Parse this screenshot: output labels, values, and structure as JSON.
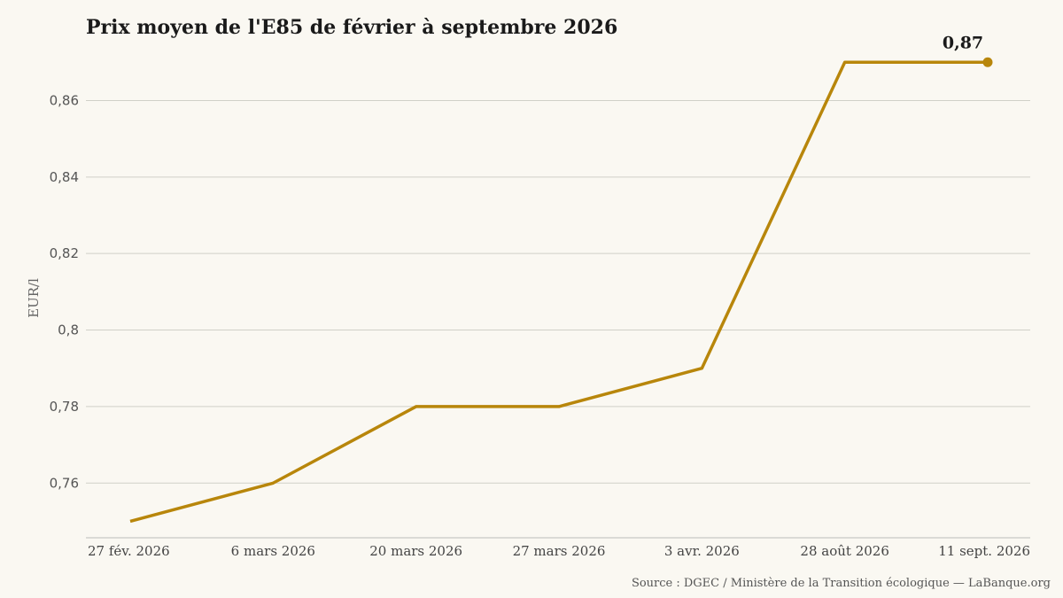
{
  "title": "Prix moyen de l'E85 de février à septembre 2026",
  "source": "Source : DGEC / Ministère de la Transition écologique — LaBanque.org",
  "chart_data": {
    "type": "line",
    "title": "Prix moyen de l'E85 de février à septembre 2026",
    "xlabel": "",
    "ylabel": "EUR/l",
    "categories": [
      "27 fév. 2026",
      "6 mars 2026",
      "20 mars 2026",
      "27 mars 2026",
      "3 avr. 2026",
      "28 août 2026",
      "11 sept. 2026"
    ],
    "series": [
      {
        "values": [
          0.75,
          0.76,
          0.78,
          0.78,
          0.79,
          0.87,
          0.87
        ]
      }
    ],
    "ylim": [
      0.7457,
      0.8747
    ],
    "yticks": [
      0.76,
      0.78,
      0.8,
      0.82,
      0.84,
      0.86
    ],
    "ytick_labels": [
      "0,76",
      "0,78",
      "0,8",
      "0,82",
      "0,84",
      "0,86"
    ],
    "end_label": "0,87",
    "grid": "horizontal",
    "legend": "none",
    "colors": {
      "line": "#b8860b",
      "grid": "#d0d0c8",
      "axis": "#bbbbbb"
    }
  }
}
